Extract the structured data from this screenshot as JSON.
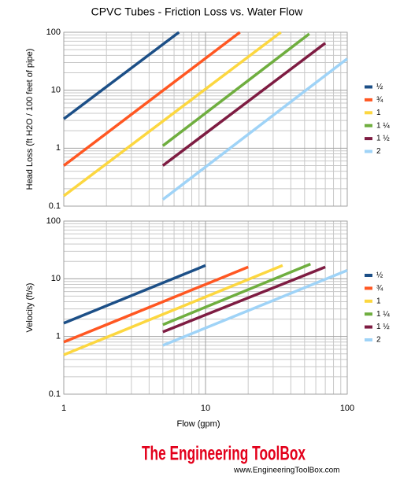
{
  "chart_data": [
    {
      "type": "line",
      "title": "CPVC Tubes - Friction Loss vs. Water Flow",
      "ylabel": "Head Loss (ft H2O / 100 feet of pipe)",
      "log_x": true,
      "log_y": true,
      "grid": true,
      "minor_grid": true,
      "legend": "right",
      "xtick_labels": false,
      "xlim": [
        1,
        100
      ],
      "xticks": [
        1,
        10,
        100
      ],
      "ylim": [
        0.1,
        100
      ],
      "yticks": [
        0.1,
        1,
        10,
        100
      ],
      "series": [
        {
          "name": "½",
          "color": "#1c4f87",
          "x": [
            1,
            6.5
          ],
          "values": [
            3.2,
            100
          ]
        },
        {
          "name": "¾",
          "color": "#ff5722",
          "x": [
            1,
            17.5
          ],
          "values": [
            0.5,
            100
          ]
        },
        {
          "name": "1",
          "color": "#fcd740",
          "x": [
            1,
            34
          ],
          "values": [
            0.15,
            100
          ]
        },
        {
          "name": "1 ¼",
          "color": "#6fae3f",
          "x": [
            5,
            54
          ],
          "values": [
            1.1,
            94
          ]
        },
        {
          "name": "1 ½",
          "color": "#7e1c42",
          "x": [
            5,
            70
          ],
          "values": [
            0.5,
            65
          ]
        },
        {
          "name": "2",
          "color": "#9fd3f7",
          "x": [
            5,
            100
          ],
          "values": [
            0.13,
            35
          ]
        }
      ]
    },
    {
      "type": "line",
      "xlabel": "Flow (gpm)",
      "ylabel": "Velocity (ft/s)",
      "log_x": true,
      "log_y": true,
      "grid": true,
      "minor_grid": true,
      "legend": "right",
      "xtick_labels": true,
      "xlim": [
        1,
        100
      ],
      "xticks": [
        1,
        10,
        100
      ],
      "ylim": [
        0.1,
        100
      ],
      "yticks": [
        0.1,
        1,
        10,
        100
      ],
      "series": [
        {
          "name": "½",
          "color": "#1c4f87",
          "x": [
            1,
            10
          ],
          "values": [
            1.7,
            17
          ]
        },
        {
          "name": "¾",
          "color": "#ff5722",
          "x": [
            1,
            20
          ],
          "values": [
            0.8,
            16
          ]
        },
        {
          "name": "1",
          "color": "#fcd740",
          "x": [
            1,
            35
          ],
          "values": [
            0.48,
            17
          ]
        },
        {
          "name": "1 ¼",
          "color": "#6fae3f",
          "x": [
            5,
            55
          ],
          "values": [
            1.6,
            18
          ]
        },
        {
          "name": "1 ½",
          "color": "#7e1c42",
          "x": [
            5,
            70
          ],
          "values": [
            1.2,
            16
          ]
        },
        {
          "name": "2",
          "color": "#9fd3f7",
          "x": [
            5,
            100
          ],
          "values": [
            0.7,
            14
          ]
        }
      ]
    }
  ],
  "footer": {
    "logo": "The Engineering ToolBox",
    "url": "www.EngineeringToolBox.com"
  }
}
